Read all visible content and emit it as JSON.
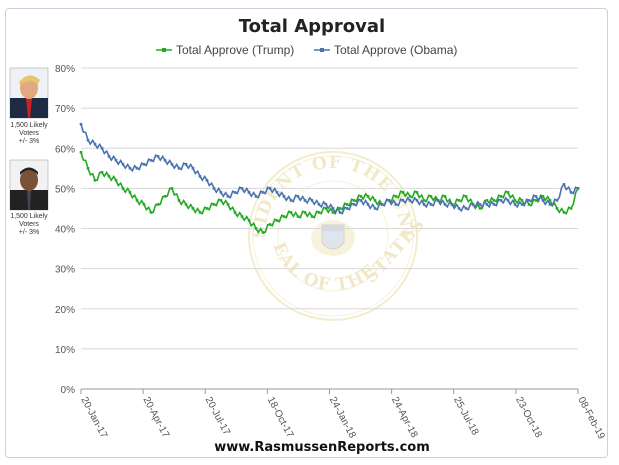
{
  "chart_data": {
    "type": "line",
    "title": "Total Approval",
    "ylim": [
      0,
      80
    ],
    "y_ticks": [
      "0%",
      "10%",
      "20%",
      "30%",
      "40%",
      "50%",
      "60%",
      "70%",
      "80%"
    ],
    "x_ticks": [
      "20-Jan-17",
      "20-Apr-17",
      "20-Jul-17",
      "18-Oct-17",
      "24-Jan-18",
      "24-Apr-18",
      "25-Jul-18",
      "23-Oct-18",
      "08-Feb-19"
    ],
    "grid": true,
    "legend_position": "top",
    "series": [
      {
        "name": "Total Approve (Trump)",
        "color": "#22aa22",
        "values": [
          59,
          55,
          52,
          54,
          53,
          52,
          50,
          49,
          47,
          46,
          44,
          46,
          48,
          50,
          47,
          46,
          45,
          44,
          45,
          46,
          47,
          46,
          44,
          43,
          42,
          40,
          39,
          41,
          42,
          43,
          44,
          43,
          44,
          43,
          44,
          45,
          44,
          45,
          46,
          47,
          48,
          48,
          47,
          46,
          47,
          48,
          49,
          48,
          49,
          47,
          48,
          47,
          48,
          46,
          47,
          48,
          46,
          45,
          47,
          47,
          48,
          49,
          47,
          47,
          46,
          47,
          48,
          47,
          45,
          44,
          45,
          50
        ]
      },
      {
        "name": "Total Approve (Obama)",
        "color": "#4a72b0",
        "values": [
          66,
          62,
          61,
          60,
          58,
          57,
          56,
          55,
          55,
          56,
          57,
          58,
          57,
          56,
          55,
          56,
          55,
          53,
          52,
          50,
          49,
          48,
          49,
          50,
          49,
          48,
          49,
          50,
          49,
          48,
          47,
          48,
          47,
          47,
          46,
          46,
          45,
          44,
          45,
          46,
          47,
          46,
          45,
          46,
          47,
          46,
          47,
          47,
          47,
          46,
          46,
          47,
          46,
          46,
          45,
          45,
          46,
          46,
          46,
          46,
          47,
          47,
          46,
          46,
          47,
          48,
          47,
          46,
          47,
          51,
          49,
          50
        ]
      }
    ],
    "annotations": [
      "1,500 Likely",
      "Voters",
      "+/- 3%"
    ]
  },
  "footer": "www.RasmussenReports.com",
  "seal": {
    "top_text": "PRESIDENT OF THE UNITED",
    "bottom_text": "SEAL OF THE",
    "right_text": "STATES"
  }
}
